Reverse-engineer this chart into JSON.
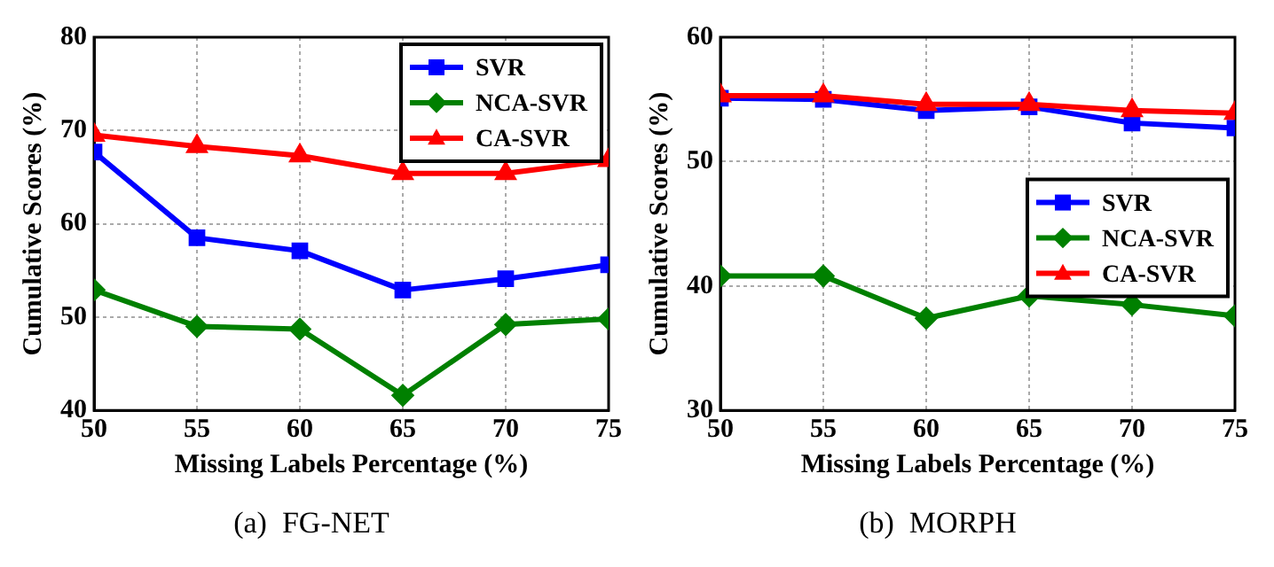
{
  "chart_data": [
    {
      "type": "line",
      "title": "(a)  FG-NET",
      "xlabel": "Missing Labels Percentage (%)",
      "ylabel": "Cumulative Scores (%)",
      "x": [
        50,
        55,
        60,
        65,
        70,
        75
      ],
      "xlim": [
        50,
        75
      ],
      "xticks": [
        50,
        55,
        60,
        65,
        70,
        75
      ],
      "ylim": [
        40,
        80
      ],
      "yticks": [
        40,
        50,
        60,
        70,
        80
      ],
      "grid": true,
      "legend": "top right",
      "line_style": "solid",
      "series": [
        {
          "name": "SVR",
          "color": "#0000ff",
          "marker": "square",
          "values": [
            67.7,
            58.5,
            57.1,
            52.9,
            54.1,
            55.6
          ]
        },
        {
          "name": "NCA-SVR",
          "color": "#008000",
          "marker": "diamond",
          "values": [
            52.9,
            49.0,
            48.7,
            41.6,
            49.2,
            49.8
          ]
        },
        {
          "name": "CA-SVR",
          "color": "#ff0000",
          "marker": "triangle",
          "values": [
            69.5,
            68.3,
            67.3,
            65.4,
            65.4,
            66.8
          ]
        }
      ]
    },
    {
      "type": "line",
      "title": "(b)  MORPH",
      "xlabel": "Missing Labels Percentage (%)",
      "ylabel": "Cumulative Scores (%)",
      "x": [
        50,
        55,
        60,
        65,
        70,
        75
      ],
      "xlim": [
        50,
        75
      ],
      "xticks": [
        50,
        55,
        60,
        65,
        70,
        75
      ],
      "ylim": [
        30,
        60
      ],
      "yticks": [
        30,
        40,
        50,
        60
      ],
      "grid": true,
      "legend": "right",
      "line_style": "solid",
      "series": [
        {
          "name": "SVR",
          "color": "#0000ff",
          "marker": "square",
          "values": [
            55.1,
            55.0,
            54.1,
            54.4,
            53.1,
            52.7
          ]
        },
        {
          "name": "NCA-SVR",
          "color": "#008000",
          "marker": "diamond",
          "values": [
            40.8,
            40.8,
            37.4,
            39.2,
            38.5,
            37.6
          ]
        },
        {
          "name": "CA-SVR",
          "color": "#ff0000",
          "marker": "triangle",
          "values": [
            55.3,
            55.3,
            54.6,
            54.6,
            54.1,
            53.9
          ]
        }
      ]
    }
  ]
}
